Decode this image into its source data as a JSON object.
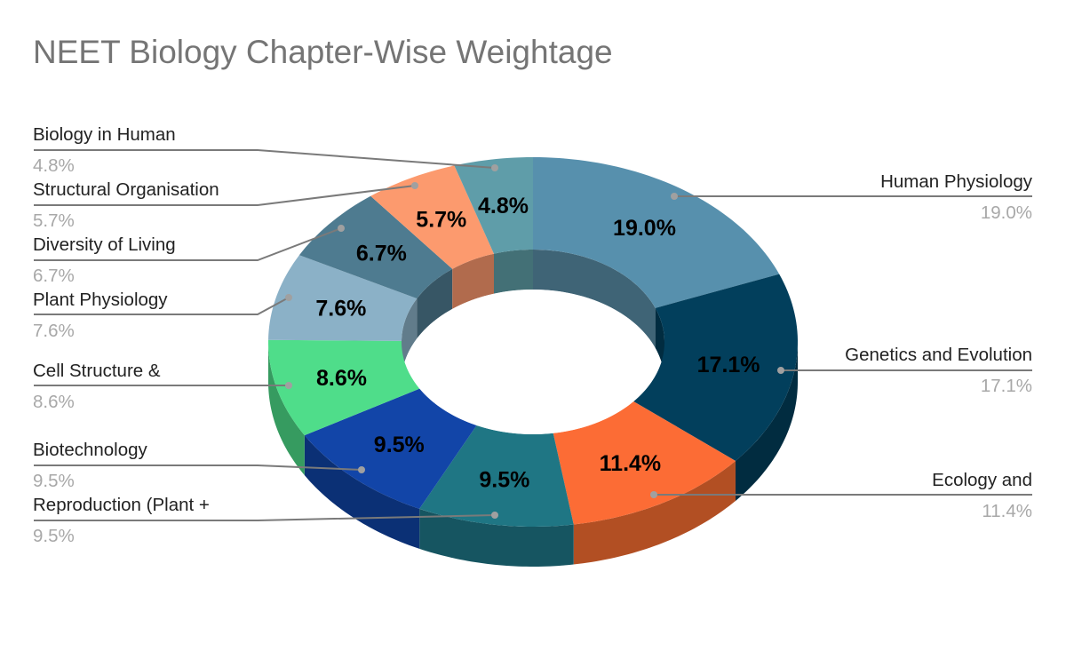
{
  "title": "NEET Biology Chapter-Wise Weightage",
  "chart_data": {
    "type": "pie",
    "subtype": "3d-donut",
    "title": "NEET Biology Chapter-Wise Weightage",
    "start_angle": "top, clockwise",
    "slices": [
      {
        "label": "Human Physiology",
        "value": 19.0,
        "display": "19.0%",
        "color": "#5790ad",
        "side": "#3f6476",
        "side_label": "right"
      },
      {
        "label": "Genetics and Evolution",
        "value": 17.1,
        "display": "17.1%",
        "color": "#023f5c",
        "side": "#012c40",
        "side_label": "right"
      },
      {
        "label": "Ecology and",
        "value": 11.4,
        "display": "11.4%",
        "color": "#fc6c35",
        "side": "#b24f23",
        "side_label": "right"
      },
      {
        "label": "Reproduction (Plant +",
        "value": 9.5,
        "display": "9.5%",
        "color": "#1f7684",
        "side": "#165561",
        "side_label": "left"
      },
      {
        "label": "Biotechnology",
        "value": 9.5,
        "display": "9.5%",
        "color": "#1245a8",
        "side": "#0b3075",
        "side_label": "left"
      },
      {
        "label": "Cell Structure &",
        "value": 8.6,
        "display": "8.6%",
        "color": "#4fdd8a",
        "side": "#369b60",
        "side_label": "left"
      },
      {
        "label": "Plant Physiology",
        "value": 7.6,
        "display": "7.6%",
        "color": "#8bb1c7",
        "side": "#617c8b",
        "side_label": "left"
      },
      {
        "label": "Diversity of Living",
        "value": 6.7,
        "display": "6.7%",
        "color": "#4e7b90",
        "side": "#375665",
        "side_label": "left"
      },
      {
        "label": "Structural Organisation",
        "value": 5.7,
        "display": "5.7%",
        "color": "#fc9a6e",
        "side": "#b16b4d",
        "side_label": "left"
      },
      {
        "label": "Biology in Human",
        "value": 4.8,
        "display": "4.8%",
        "color": "#5f9da9",
        "side": "#437076",
        "side_label": "left"
      }
    ],
    "legend": "callout labels with leader lines",
    "colors": {
      "title": "#757575",
      "label_name": "#222222",
      "label_value": "#a8a8a8",
      "leader_line": "#7a7a7a"
    }
  },
  "callouts": [
    {
      "name": "Human Physiology",
      "value": "19.0%"
    },
    {
      "name": "Genetics and Evolution",
      "value": "17.1%"
    },
    {
      "name": "Ecology and",
      "value": "11.4%"
    },
    {
      "name": "Reproduction (Plant +",
      "value": "9.5%"
    },
    {
      "name": "Biotechnology",
      "value": "9.5%"
    },
    {
      "name": "Cell Structure &",
      "value": "8.6%"
    },
    {
      "name": "Plant Physiology",
      "value": "7.6%"
    },
    {
      "name": "Diversity of Living",
      "value": "6.7%"
    },
    {
      "name": "Structural Organisation",
      "value": "5.7%"
    },
    {
      "name": "Biology in Human",
      "value": "4.8%"
    }
  ]
}
